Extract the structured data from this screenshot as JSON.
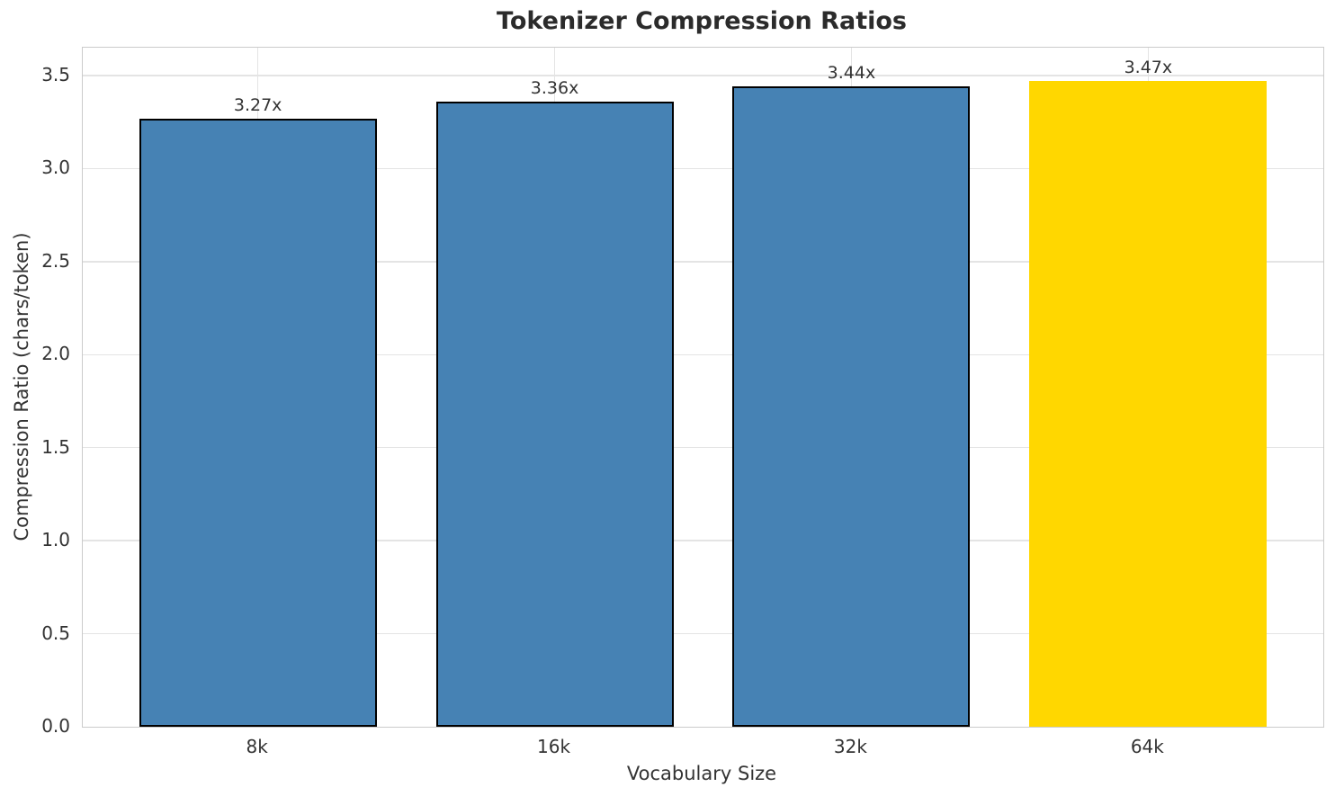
{
  "chart_data": {
    "type": "bar",
    "title": "Tokenizer Compression Ratios",
    "xlabel": "Vocabulary Size",
    "ylabel": "Compression Ratio (chars/token)",
    "categories": [
      "8k",
      "16k",
      "32k",
      "64k"
    ],
    "values": [
      3.27,
      3.36,
      3.44,
      3.47
    ],
    "bar_labels": [
      "3.27x",
      "3.36x",
      "3.44x",
      "3.47x"
    ],
    "ytick_values": [
      0.0,
      0.5,
      1.0,
      1.5,
      2.0,
      2.5,
      3.0,
      3.5
    ],
    "ytick_labels": [
      "0.0",
      "0.5",
      "1.0",
      "1.5",
      "2.0",
      "2.5",
      "3.0",
      "3.5"
    ],
    "ylim": [
      0,
      3.65
    ],
    "xlim_units": [
      -0.59,
      3.59
    ],
    "bar_width_units": 0.8,
    "grid": true,
    "legend_position": "none",
    "highlight_index": 3,
    "colors": {
      "bar_fill": [
        "#4682B4",
        "#4682B4",
        "#4682B4",
        "#FFD700"
      ],
      "bar_edge": [
        "#000000",
        "#000000",
        "#000000",
        "#FFD700"
      ],
      "grid_line": "#e4e4e4",
      "spine": "#cbcbcb",
      "tick_text": "#333333",
      "title_text": "#2b2b2b",
      "background": "#ffffff"
    }
  }
}
